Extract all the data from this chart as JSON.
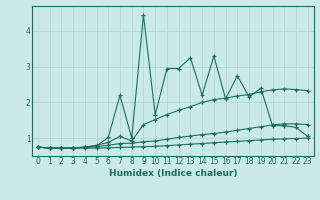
{
  "xlabel": "Humidex (Indice chaleur)",
  "xlim": [
    -0.5,
    23.5
  ],
  "ylim": [
    0.5,
    4.7
  ],
  "yticks": [
    1,
    2,
    3,
    4
  ],
  "xticks": [
    0,
    1,
    2,
    3,
    4,
    5,
    6,
    7,
    8,
    9,
    10,
    11,
    12,
    13,
    14,
    15,
    16,
    17,
    18,
    19,
    20,
    21,
    22,
    23
  ],
  "bg_color": "#cce9e9",
  "grid_color": "#b0d8d8",
  "line_color": "#1a6e60",
  "curves": {
    "spiky": {
      "x": [
        0,
        1,
        2,
        3,
        4,
        5,
        6,
        7,
        8,
        9,
        10,
        11,
        12,
        13,
        14,
        15,
        16,
        17,
        18,
        19,
        20,
        21,
        22,
        23
      ],
      "y": [
        0.75,
        0.72,
        0.72,
        0.72,
        0.75,
        0.78,
        1.02,
        2.2,
        1.0,
        4.45,
        1.65,
        2.95,
        2.95,
        3.25,
        2.2,
        3.3,
        2.1,
        2.75,
        2.15,
        2.4,
        1.35,
        1.35,
        1.3,
        1.05
      ]
    },
    "smooth_upper": {
      "x": [
        0,
        1,
        2,
        3,
        4,
        5,
        6,
        7,
        8,
        9,
        10,
        11,
        12,
        13,
        14,
        15,
        16,
        17,
        18,
        19,
        20,
        21,
        22,
        23
      ],
      "y": [
        0.75,
        0.72,
        0.72,
        0.73,
        0.75,
        0.8,
        0.88,
        1.05,
        0.92,
        1.38,
        1.52,
        1.66,
        1.78,
        1.88,
        2.0,
        2.08,
        2.12,
        2.18,
        2.22,
        2.3,
        2.35,
        2.38,
        2.36,
        2.33
      ]
    },
    "smooth_mid": {
      "x": [
        0,
        1,
        2,
        3,
        4,
        5,
        6,
        7,
        8,
        9,
        10,
        11,
        12,
        13,
        14,
        15,
        16,
        17,
        18,
        19,
        20,
        21,
        22,
        23
      ],
      "y": [
        0.75,
        0.72,
        0.72,
        0.73,
        0.74,
        0.76,
        0.8,
        0.85,
        0.86,
        0.9,
        0.92,
        0.97,
        1.02,
        1.06,
        1.1,
        1.13,
        1.17,
        1.22,
        1.27,
        1.32,
        1.37,
        1.4,
        1.4,
        1.38
      ]
    },
    "flat_bottom": {
      "x": [
        0,
        1,
        2,
        3,
        4,
        5,
        6,
        7,
        8,
        9,
        10,
        11,
        12,
        13,
        14,
        15,
        16,
        17,
        18,
        19,
        20,
        21,
        22,
        23
      ],
      "y": [
        0.75,
        0.72,
        0.72,
        0.72,
        0.72,
        0.72,
        0.73,
        0.74,
        0.75,
        0.76,
        0.77,
        0.79,
        0.81,
        0.83,
        0.85,
        0.87,
        0.89,
        0.91,
        0.93,
        0.95,
        0.97,
        0.98,
        0.99,
        1.0
      ]
    }
  }
}
